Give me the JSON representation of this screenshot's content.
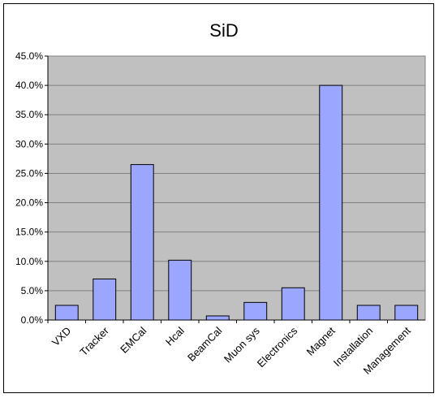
{
  "chart_data": {
    "type": "bar",
    "title": "SiD",
    "xlabel": "",
    "ylabel": "",
    "categories": [
      "VXD",
      "Tracker",
      "EMCal",
      "Hcal",
      "BeamCal",
      "Muon sys",
      "Electronics",
      "Magnet",
      "Installation",
      "Management"
    ],
    "values": [
      0.025,
      0.07,
      0.265,
      0.102,
      0.007,
      0.03,
      0.055,
      0.4,
      0.025,
      0.025
    ],
    "ylim": [
      0,
      0.45
    ],
    "yticks": [
      0,
      0.05,
      0.1,
      0.15,
      0.2,
      0.25,
      0.3,
      0.35,
      0.4,
      0.45
    ],
    "ytick_labels": [
      "0.0%",
      "5.0%",
      "10.0%",
      "15.0%",
      "20.0%",
      "25.0%",
      "30.0%",
      "35.0%",
      "40.0%",
      "45.0%"
    ],
    "grid": true,
    "legend": "none",
    "colors": {
      "bar_fill": "#9aa6ff",
      "bar_stroke": "#000000",
      "plot_bg": "#c0c0c0",
      "grid": "#808080"
    }
  }
}
